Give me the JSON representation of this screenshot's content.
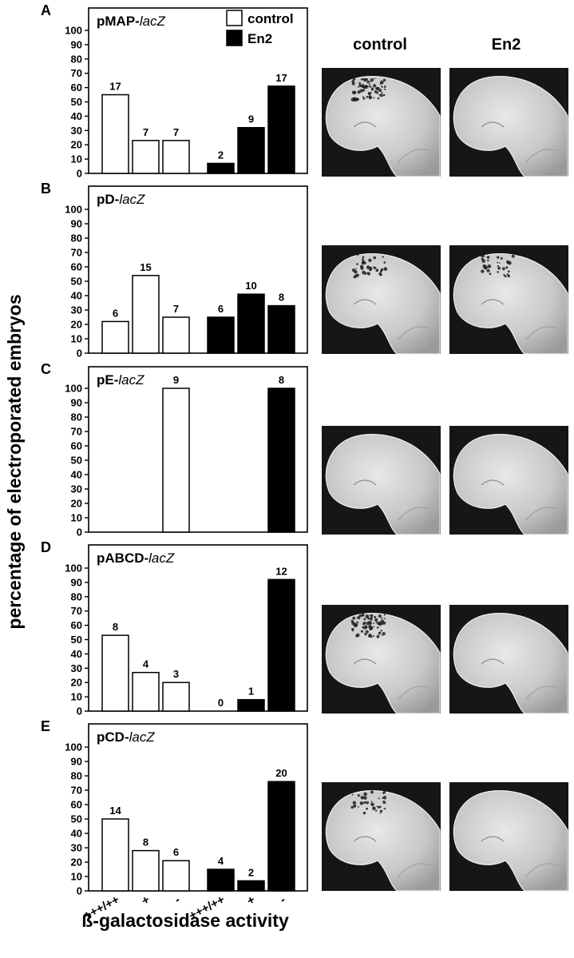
{
  "figure": {
    "ylabel": "percentage of electroporated embryos",
    "xlabel": "ß-galactosidase activity",
    "column_headers": [
      "control",
      "En2"
    ],
    "legend": [
      {
        "name": "control",
        "fill": "#ffffff"
      },
      {
        "name": "En2",
        "fill": "#000000"
      }
    ],
    "x_tick_labels": [
      "+++/++",
      "+",
      "-",
      "+++/++",
      "+",
      "-"
    ]
  },
  "chart_data": [
    {
      "type": "bar",
      "panel": "A",
      "construct": "pMAP-",
      "construct_italic": "lacZ",
      "ylim": [
        0,
        100
      ],
      "yticks": [
        0,
        10,
        20,
        30,
        40,
        50,
        60,
        70,
        80,
        90,
        100
      ],
      "categories": [
        "+++/++",
        "+",
        "-"
      ],
      "series": [
        {
          "name": "control",
          "values": [
            55,
            23,
            23
          ],
          "labels": [
            "17",
            "7",
            "7"
          ]
        },
        {
          "name": "En2",
          "values": [
            7,
            32,
            61
          ],
          "labels": [
            "2",
            "9",
            "17"
          ]
        }
      ]
    },
    {
      "type": "bar",
      "panel": "B",
      "construct": "pD-",
      "construct_italic": "lacZ",
      "ylim": [
        0,
        100
      ],
      "yticks": [
        0,
        10,
        20,
        30,
        40,
        50,
        60,
        70,
        80,
        90,
        100
      ],
      "categories": [
        "+++/++",
        "+",
        "-"
      ],
      "series": [
        {
          "name": "control",
          "values": [
            22,
            54,
            25
          ],
          "labels": [
            "6",
            "15",
            "7"
          ]
        },
        {
          "name": "En2",
          "values": [
            25,
            41,
            33
          ],
          "labels": [
            "6",
            "10",
            "8"
          ]
        }
      ]
    },
    {
      "type": "bar",
      "panel": "C",
      "construct": "pE-",
      "construct_italic": "lacZ",
      "ylim": [
        0,
        100
      ],
      "yticks": [
        0,
        10,
        20,
        30,
        40,
        50,
        60,
        70,
        80,
        90,
        100
      ],
      "categories": [
        "+++/++",
        "+",
        "-"
      ],
      "series": [
        {
          "name": "control",
          "values": [
            null,
            null,
            100
          ],
          "labels": [
            "",
            "",
            "9"
          ]
        },
        {
          "name": "En2",
          "values": [
            null,
            null,
            100
          ],
          "labels": [
            "",
            "",
            "8"
          ]
        }
      ]
    },
    {
      "type": "bar",
      "panel": "D",
      "construct": "pABCD-",
      "construct_italic": "lacZ",
      "ylim": [
        0,
        100
      ],
      "yticks": [
        0,
        10,
        20,
        30,
        40,
        50,
        60,
        70,
        80,
        90,
        100
      ],
      "categories": [
        "+++/++",
        "+",
        "-"
      ],
      "series": [
        {
          "name": "control",
          "values": [
            53,
            27,
            20
          ],
          "labels": [
            "8",
            "4",
            "3"
          ]
        },
        {
          "name": "En2",
          "values": [
            0,
            8,
            92
          ],
          "labels": [
            "0",
            "1",
            "12"
          ]
        }
      ]
    },
    {
      "type": "bar",
      "panel": "E",
      "construct": "pCD-",
      "construct_italic": "lacZ",
      "ylim": [
        0,
        100
      ],
      "yticks": [
        0,
        10,
        20,
        30,
        40,
        50,
        60,
        70,
        80,
        90,
        100
      ],
      "categories": [
        "+++/++",
        "+",
        "-"
      ],
      "series": [
        {
          "name": "control",
          "values": [
            50,
            28,
            21
          ],
          "labels": [
            "14",
            "8",
            "6"
          ]
        },
        {
          "name": "En2",
          "values": [
            15,
            7,
            76
          ],
          "labels": [
            "4",
            "2",
            "20"
          ]
        }
      ]
    }
  ],
  "micrographs": [
    {
      "panel": "A",
      "column": "control",
      "stain": "strong"
    },
    {
      "panel": "A",
      "column": "En2",
      "stain": "none"
    },
    {
      "panel": "B",
      "column": "control",
      "stain": "moderate"
    },
    {
      "panel": "B",
      "column": "En2",
      "stain": "moderate"
    },
    {
      "panel": "C",
      "column": "control",
      "stain": "none"
    },
    {
      "panel": "C",
      "column": "En2",
      "stain": "none"
    },
    {
      "panel": "D",
      "column": "control",
      "stain": "strong"
    },
    {
      "panel": "D",
      "column": "En2",
      "stain": "none"
    },
    {
      "panel": "E",
      "column": "control",
      "stain": "moderate"
    },
    {
      "panel": "E",
      "column": "En2",
      "stain": "none"
    }
  ]
}
